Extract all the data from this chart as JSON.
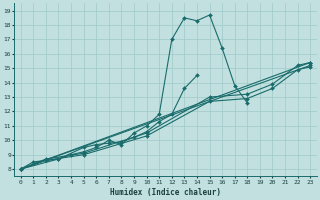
{
  "xlabel": "Humidex (Indice chaleur)",
  "bg_color": "#c2e0e0",
  "grid_color": "#9fc8c8",
  "line_color": "#1a6b6b",
  "xlim": [
    -0.5,
    23.5
  ],
  "ylim": [
    7.5,
    19.5
  ],
  "xticks": [
    0,
    1,
    2,
    3,
    4,
    5,
    6,
    7,
    8,
    9,
    10,
    11,
    12,
    13,
    14,
    15,
    16,
    17,
    18,
    19,
    20,
    21,
    22,
    23
  ],
  "yticks": [
    8,
    9,
    10,
    11,
    12,
    13,
    14,
    15,
    16,
    17,
    18,
    19
  ],
  "line1_x": [
    0,
    1,
    2,
    3,
    4,
    5,
    6,
    7,
    8,
    9,
    10,
    11,
    12,
    13,
    14,
    15,
    16,
    17,
    18
  ],
  "line1_y": [
    8.0,
    8.5,
    8.6,
    8.7,
    9.0,
    9.2,
    9.5,
    10.0,
    9.7,
    10.5,
    11.0,
    11.8,
    17.0,
    18.5,
    18.3,
    18.7,
    16.4,
    13.8,
    12.6
  ],
  "line2_x": [
    0,
    3,
    5,
    6,
    7,
    8,
    9,
    10,
    11,
    12,
    13,
    14
  ],
  "line2_y": [
    8.0,
    8.7,
    9.5,
    9.7,
    9.8,
    9.9,
    10.2,
    10.6,
    11.3,
    11.8,
    13.6,
    14.5
  ],
  "line3_x": [
    0,
    23
  ],
  "line3_y": [
    8.0,
    15.4
  ],
  "line4_x": [
    0,
    23
  ],
  "line4_y": [
    8.0,
    15.2
  ],
  "line5_x": [
    0,
    2,
    5,
    10,
    15,
    18,
    20,
    22,
    23
  ],
  "line5_y": [
    8.0,
    8.7,
    9.1,
    10.5,
    13.0,
    13.2,
    13.9,
    15.2,
    15.4
  ],
  "line6_x": [
    0,
    2,
    5,
    10,
    15,
    18,
    20,
    22,
    23
  ],
  "line6_y": [
    8.0,
    8.6,
    9.0,
    10.3,
    12.7,
    12.9,
    13.6,
    14.9,
    15.1
  ]
}
